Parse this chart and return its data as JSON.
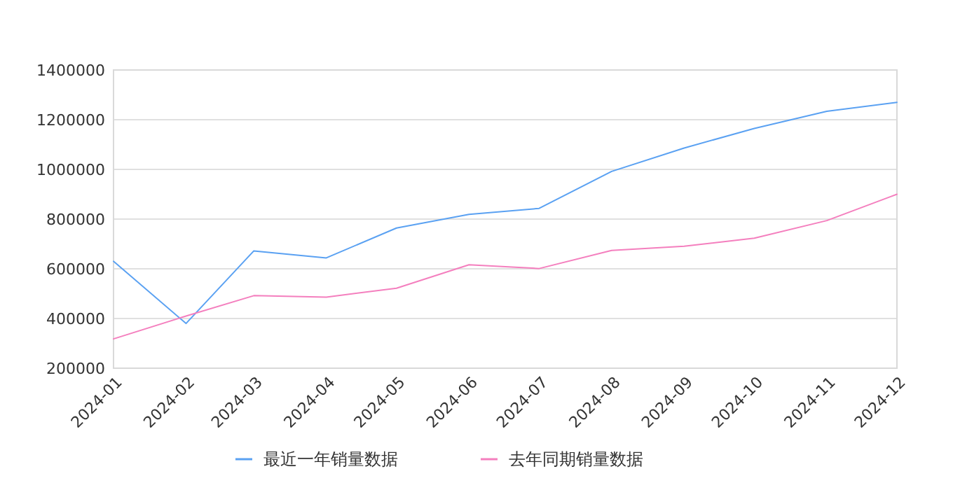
{
  "chart_data": {
    "type": "line",
    "x": [
      "2024-01",
      "2024-02",
      "2024-03",
      "2024-04",
      "2024-05",
      "2024-06",
      "2024-07",
      "2024-08",
      "2024-09",
      "2024-10",
      "2024-11",
      "2024-12"
    ],
    "xticks": [
      {
        "value": "2024-01",
        "label": "2024-01"
      },
      {
        "value": "2024-02",
        "label": "2024-02"
      },
      {
        "value": "2024-03",
        "label": "2024-03"
      },
      {
        "value": "2024-04",
        "label": "2024-04"
      },
      {
        "value": "2024-05",
        "label": "2024-05"
      },
      {
        "value": "2024-06",
        "label": "2024-06"
      },
      {
        "value": "2024-07",
        "label": "2024-07"
      },
      {
        "value": "2024-08",
        "label": "2024-08"
      },
      {
        "value": "2024-09",
        "label": "2024-09"
      },
      {
        "value": "2024-10",
        "label": "2024-10"
      },
      {
        "value": "2024-11",
        "label": "2024-11"
      },
      {
        "value": "2024-12",
        "label": "2024-12"
      }
    ],
    "xlim": [
      "2024-01",
      "2024-12"
    ],
    "series": [
      {
        "name": "最近一年销量数据",
        "color": "#5aa1f2",
        "values": [
          630000,
          380000,
          672000,
          644000,
          764000,
          819000,
          843000,
          992000,
          1086000,
          1165000,
          1234000,
          1270000
        ]
      },
      {
        "name": "去年同期销量数据",
        "color": "#f47fbe",
        "values": [
          318000,
          410000,
          492000,
          486000,
          522000,
          616000,
          601000,
          674000,
          691000,
          723000,
          794000,
          900000
        ]
      }
    ],
    "ylim": [
      200000,
      1400000
    ],
    "yticks": [
      200000,
      400000,
      600000,
      800000,
      1000000,
      1200000,
      1400000
    ],
    "grid": "y",
    "legend": "bottom",
    "marker": "none",
    "line_style": "solid"
  }
}
